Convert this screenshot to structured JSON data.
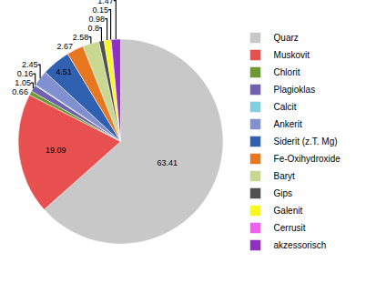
{
  "chart_data": {
    "type": "pie",
    "categories": [
      "Quarz",
      "Muskovit",
      "Chlorit",
      "Plagioklas",
      "Calcit",
      "Ankerit",
      "Siderit (z.T. Mg)",
      "Fe-Oxihydroxide",
      "Baryt",
      "Gips",
      "Galenit",
      "Cerrusit",
      "akzessorisch"
    ],
    "values": [
      63.41,
      19.09,
      0.66,
      1.05,
      0.16,
      2.45,
      4.51,
      2.67,
      2.58,
      0.8,
      0.98,
      0.15,
      1.47
    ],
    "colors": [
      "#c8c8c8",
      "#e85050",
      "#6a9a30",
      "#7060b0",
      "#80d0e0",
      "#8090d0",
      "#3060b0",
      "#e87820",
      "#c8d890",
      "#505050",
      "#f8f820",
      "#f060f0",
      "#9030c0"
    ],
    "data_labels": true,
    "legend": "right"
  }
}
